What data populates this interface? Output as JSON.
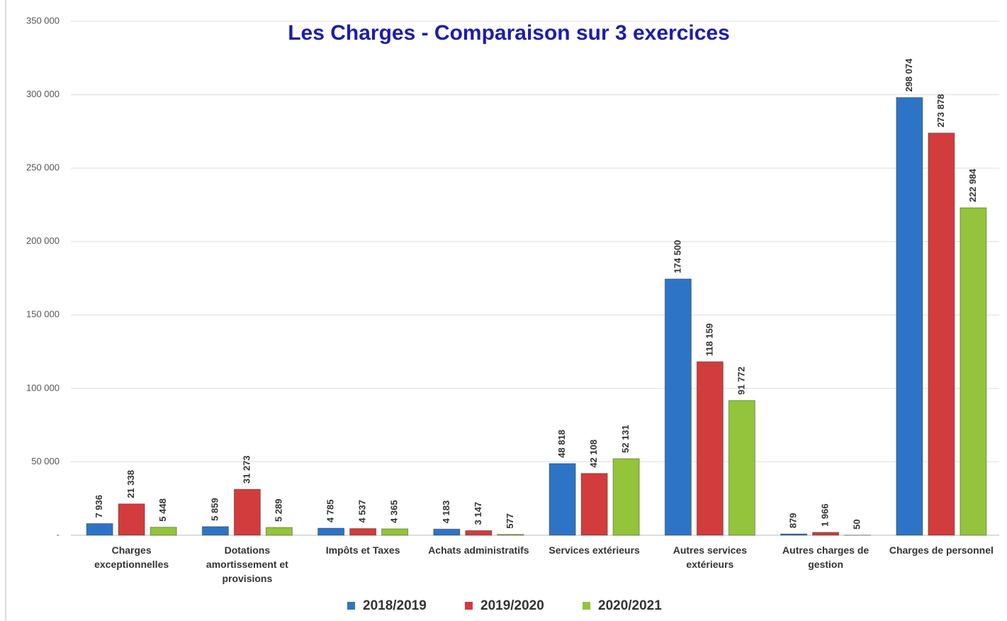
{
  "chart_data": {
    "type": "bar",
    "title": "Les Charges - Comparaison sur 3 exercices",
    "categories": [
      "Charges exceptionnelles",
      "Dotations amortissement et provisions",
      "Impôts et Taxes",
      "Achats administratifs",
      "Services extérieurs",
      "Autres services extérieurs",
      "Autres charges de gestion",
      "Charges de personnel"
    ],
    "series": [
      {
        "name": "2018/2019",
        "color": "#2e74c6",
        "values": [
          7936,
          5859,
          4785,
          4183,
          48818,
          174500,
          879,
          298074
        ],
        "value_labels": [
          "7 936",
          "5 859",
          "4 785",
          "4 183",
          "48 818",
          "174 500",
          "879",
          "298 074"
        ]
      },
      {
        "name": "2019/2020",
        "color": "#d23c3c",
        "values": [
          21338,
          31273,
          4537,
          3147,
          42108,
          118159,
          1966,
          273878
        ],
        "value_labels": [
          "21 338",
          "31 273",
          "4 537",
          "3 147",
          "42 108",
          "118 159",
          "1 966",
          "273 878"
        ]
      },
      {
        "name": "2020/2021",
        "color": "#93c43b",
        "values": [
          5448,
          5289,
          4365,
          577,
          52131,
          91772,
          50,
          222984
        ],
        "value_labels": [
          "5 448",
          "5 289",
          "4 365",
          "577",
          "52 131",
          "91 772",
          "50",
          "222 984"
        ]
      }
    ],
    "ylim": [
      0,
      350000
    ],
    "yticks": [
      {
        "value": 0,
        "label": "-"
      },
      {
        "value": 50000,
        "label": "50 000"
      },
      {
        "value": 100000,
        "label": "100 000"
      },
      {
        "value": 150000,
        "label": "150 000"
      },
      {
        "value": 200000,
        "label": "200 000"
      },
      {
        "value": 250000,
        "label": "250 000"
      },
      {
        "value": 300000,
        "label": "300 000"
      },
      {
        "value": 350000,
        "label": "350 000"
      }
    ],
    "grid": true,
    "legend": "bottom"
  }
}
